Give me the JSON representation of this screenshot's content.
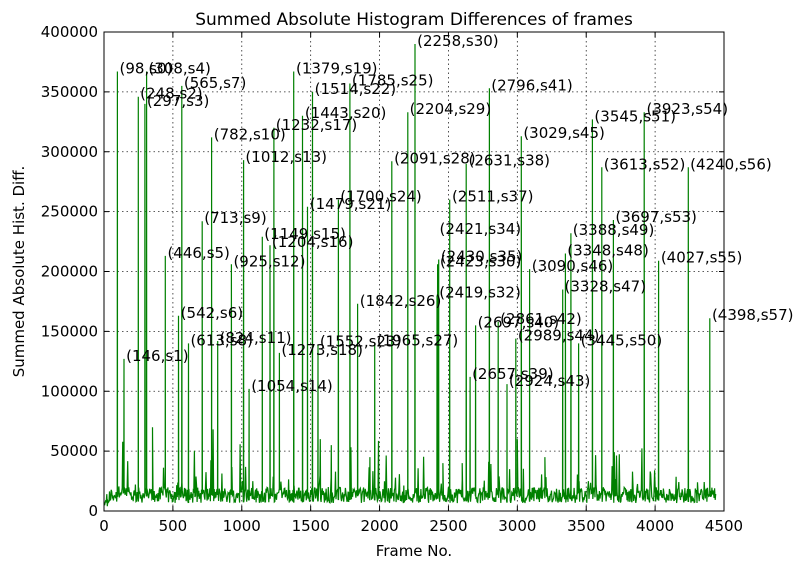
{
  "chart_data": {
    "type": "line",
    "title": "Summed Absolute Histogram Differences of frames",
    "xlabel": "Frame No.",
    "ylabel": "Summed Absolute Hist. Diff.",
    "xlim": [
      0,
      4500
    ],
    "ylim": [
      0,
      400000
    ],
    "xticks": [
      0,
      500,
      1000,
      1500,
      2000,
      2500,
      3000,
      3500,
      4000,
      4500
    ],
    "yticks": [
      0,
      50000,
      100000,
      150000,
      200000,
      250000,
      300000,
      350000,
      400000
    ],
    "xtick_labels": [
      "0",
      "500",
      "1000",
      "1500",
      "2000",
      "2500",
      "3000",
      "3500",
      "4000",
      "4500"
    ],
    "ytick_labels": [
      "0",
      "50000",
      "100000",
      "150000",
      "200000",
      "250000",
      "300000",
      "350000",
      "400000"
    ],
    "grid": true,
    "line_color": "#008000",
    "baseline": 12000,
    "peaks": [
      {
        "frame": 98,
        "value": 367000,
        "label": "(98,s0)"
      },
      {
        "frame": 146,
        "value": 127000,
        "label": "(146,s1)"
      },
      {
        "frame": 248,
        "value": 346000,
        "label": "(248,s2)"
      },
      {
        "frame": 297,
        "value": 340000,
        "label": "(297,s3)"
      },
      {
        "frame": 308,
        "value": 367000,
        "label": "(308,s4)"
      },
      {
        "frame": 446,
        "value": 213000,
        "label": "(446,s5)"
      },
      {
        "frame": 542,
        "value": 163000,
        "label": "(542,s6)"
      },
      {
        "frame": 565,
        "value": 355000,
        "label": "(565,s7)"
      },
      {
        "frame": 613,
        "value": 140000,
        "label": "(613,s8)"
      },
      {
        "frame": 713,
        "value": 242000,
        "label": "(713,s9)"
      },
      {
        "frame": 782,
        "value": 312000,
        "label": "(782,s10)"
      },
      {
        "frame": 824,
        "value": 142000,
        "label": "(824,s11)"
      },
      {
        "frame": 925,
        "value": 206000,
        "label": "(925,s12)"
      },
      {
        "frame": 1012,
        "value": 293000,
        "label": "(1012,s13)"
      },
      {
        "frame": 1054,
        "value": 102000,
        "label": "(1054,s14)"
      },
      {
        "frame": 1149,
        "value": 229000,
        "label": "(1149,s15)"
      },
      {
        "frame": 1204,
        "value": 222000,
        "label": "(1204,s16)"
      },
      {
        "frame": 1232,
        "value": 320000,
        "label": "(1232,s17)"
      },
      {
        "frame": 1273,
        "value": 132000,
        "label": "(1273,s18)"
      },
      {
        "frame": 1379,
        "value": 367000,
        "label": "(1379,s19)"
      },
      {
        "frame": 1443,
        "value": 330000,
        "label": "(1443,s20)"
      },
      {
        "frame": 1479,
        "value": 254000,
        "label": "(1479,s21)"
      },
      {
        "frame": 1514,
        "value": 350000,
        "label": "(1514,s22)"
      },
      {
        "frame": 1552,
        "value": 139000,
        "label": "(1552,s23)"
      },
      {
        "frame": 1700,
        "value": 260000,
        "label": "(1700,s24)"
      },
      {
        "frame": 1785,
        "value": 357000,
        "label": "(1785,s25)"
      },
      {
        "frame": 1842,
        "value": 173000,
        "label": "(1842,s26)"
      },
      {
        "frame": 1965,
        "value": 140000,
        "label": "(1965,s27)"
      },
      {
        "frame": 2091,
        "value": 292000,
        "label": "(2091,s28)"
      },
      {
        "frame": 2204,
        "value": 333000,
        "label": "(2204,s29)"
      },
      {
        "frame": 2258,
        "value": 390000,
        "label": "(2258,s30)"
      },
      {
        "frame": 2423,
        "value": 206000,
        "label": "(2423,s30)"
      },
      {
        "frame": 2419,
        "value": 180000,
        "label": "(2419,s32)"
      },
      {
        "frame": 2421,
        "value": 233000,
        "label": "(2421,s34)"
      },
      {
        "frame": 2430,
        "value": 210000,
        "label": "(2430,s35)"
      },
      {
        "frame": 2511,
        "value": 260000,
        "label": "(2511,s37)"
      },
      {
        "frame": 2631,
        "value": 290000,
        "label": "(2631,s38)"
      },
      {
        "frame": 2657,
        "value": 112000,
        "label": "(2657,s39)"
      },
      {
        "frame": 2697,
        "value": 155000,
        "label": "(2697,s40)"
      },
      {
        "frame": 2796,
        "value": 353000,
        "label": "(2796,s41)"
      },
      {
        "frame": 2861,
        "value": 158000,
        "label": "(2861,s42)"
      },
      {
        "frame": 2924,
        "value": 106000,
        "label": "(2924,s43)"
      },
      {
        "frame": 2989,
        "value": 144000,
        "label": "(2989,s44)"
      },
      {
        "frame": 3029,
        "value": 313000,
        "label": "(3029,s45)"
      },
      {
        "frame": 3090,
        "value": 202000,
        "label": "(3090,s46)"
      },
      {
        "frame": 3328,
        "value": 185000,
        "label": "(3328,s47)"
      },
      {
        "frame": 3348,
        "value": 215000,
        "label": "(3348,s48)"
      },
      {
        "frame": 3388,
        "value": 232000,
        "label": "(3388,s49)"
      },
      {
        "frame": 3445,
        "value": 140000,
        "label": "(3445,s50)"
      },
      {
        "frame": 3545,
        "value": 327000,
        "label": "(3545,s51)"
      },
      {
        "frame": 3613,
        "value": 287000,
        "label": "(3613,s52)"
      },
      {
        "frame": 3697,
        "value": 243000,
        "label": "(3697,s53)"
      },
      {
        "frame": 3923,
        "value": 333000,
        "label": "(3923,s54)"
      },
      {
        "frame": 4027,
        "value": 209000,
        "label": "(4027,s55)"
      },
      {
        "frame": 4240,
        "value": 287000,
        "label": "(4240,s56)"
      },
      {
        "frame": 4398,
        "value": 161000,
        "label": "(4398,s57)"
      }
    ]
  }
}
